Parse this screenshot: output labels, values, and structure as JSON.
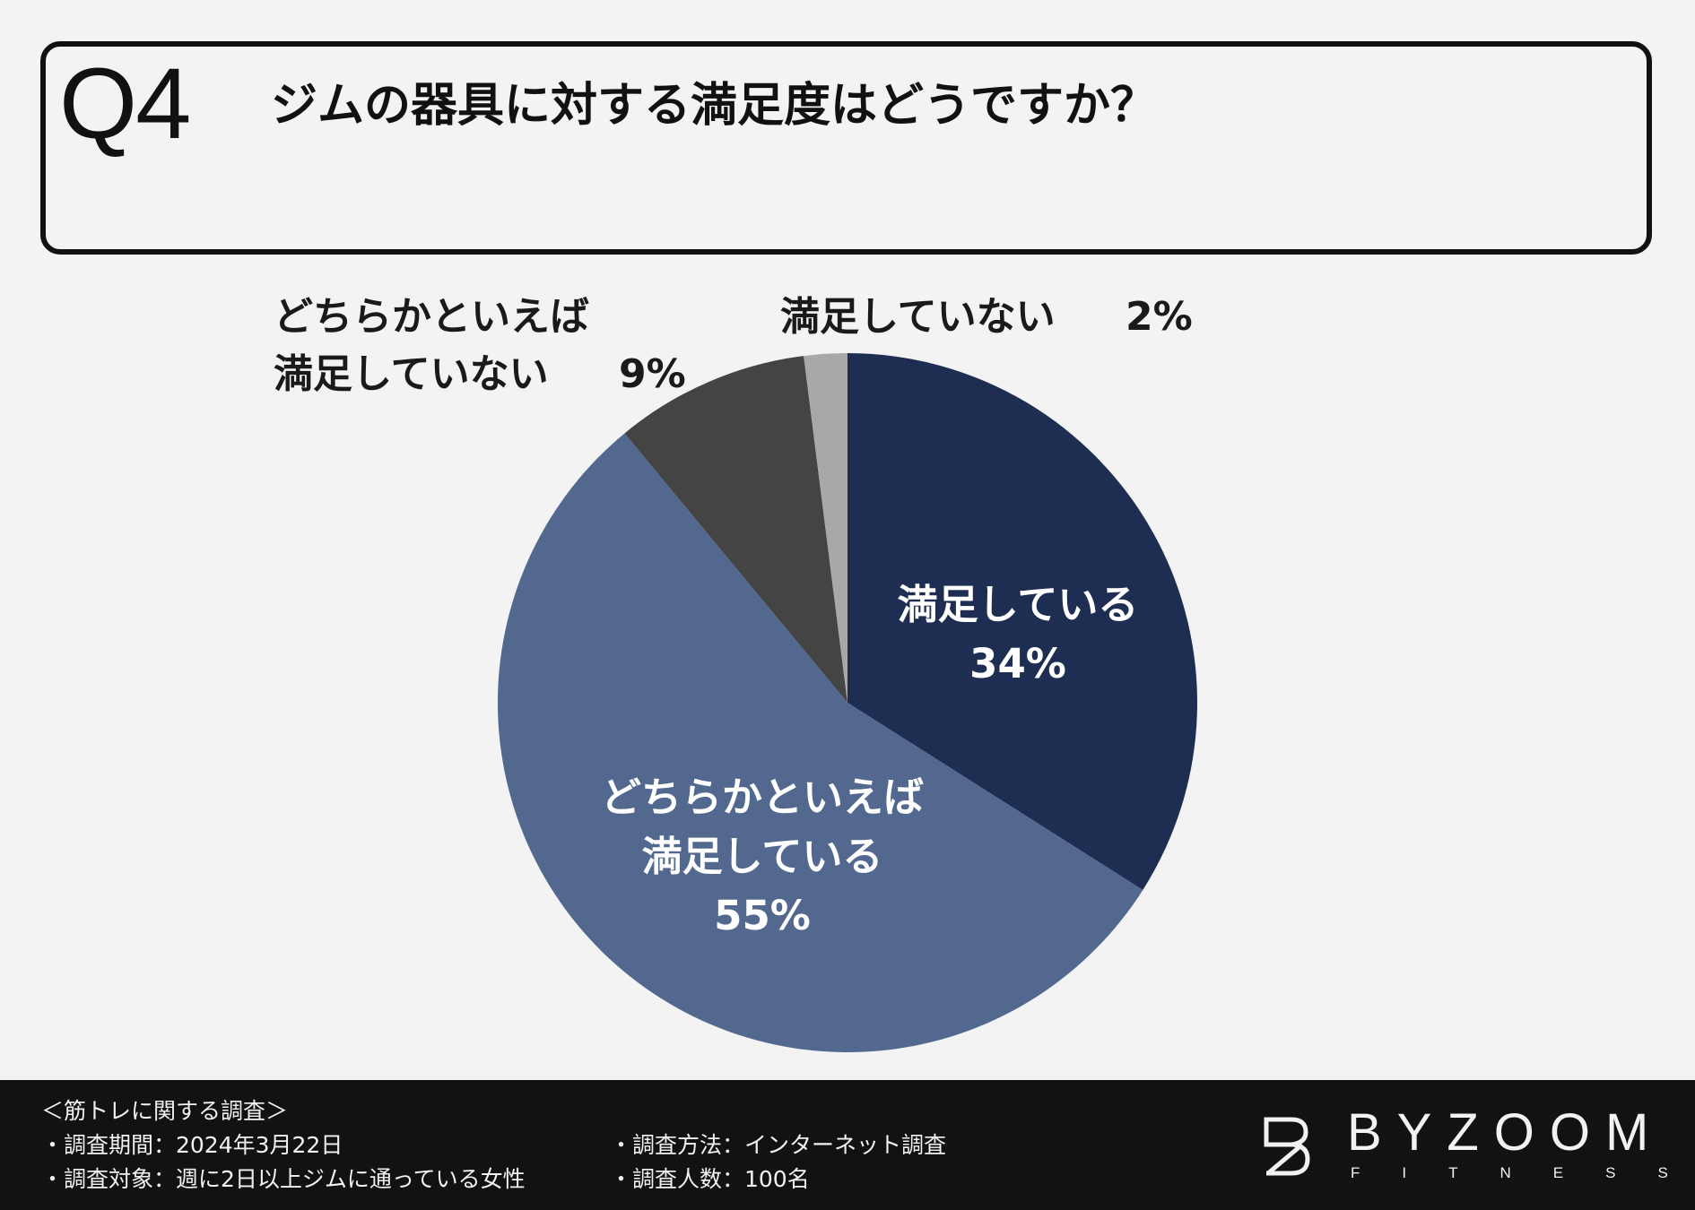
{
  "question": {
    "number": "Q4",
    "text": "ジムの器具に対する満足度はどうですか？"
  },
  "chart_data": {
    "type": "pie",
    "title": "",
    "start": "top, clockwise",
    "slices": [
      {
        "label_lines": [
          "満足している"
        ],
        "value": 34,
        "value_label": "34%",
        "color": "#1e2e52",
        "label_color": "#ffffff",
        "label_position": "inside"
      },
      {
        "label_lines": [
          "どちらかといえば",
          "満足している"
        ],
        "value": 55,
        "value_label": "55%",
        "color": "#52688f",
        "label_color": "#ffffff",
        "label_position": "inside"
      },
      {
        "label_lines": [
          "どちらかといえば",
          "満足していない"
        ],
        "value": 9,
        "value_label": "9%",
        "color": "#444444",
        "label_color": "#1a1a1a",
        "label_position": "outside"
      },
      {
        "label_lines": [
          "満足していない"
        ],
        "value": 2,
        "value_label": "2%",
        "color": "#a8a8a8",
        "label_color": "#1a1a1a",
        "label_position": "outside"
      }
    ]
  },
  "footer": {
    "survey_title": "＜筋トレに関する調査＞",
    "period": "・調査期間：2024年3月22日",
    "target": "・調査対象：週に2日以上ジムに通っている女性",
    "method": "・調査方法：インターネット調査",
    "count": "・調査人数：100名"
  },
  "brand": {
    "name": "BYZOOM",
    "sub": "FITNESS"
  }
}
